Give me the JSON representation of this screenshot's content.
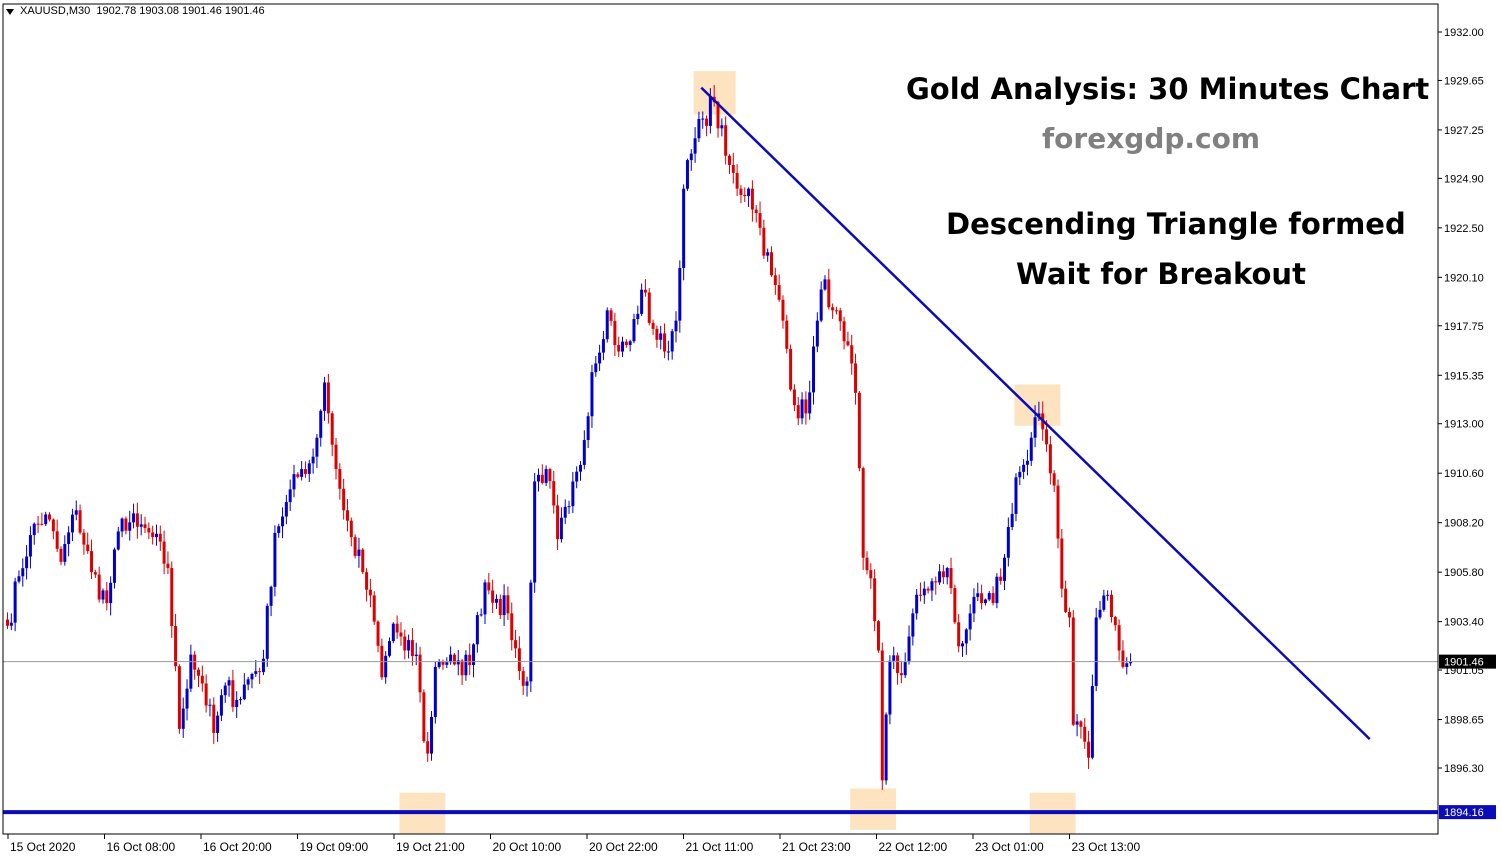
{
  "header": {
    "symbol": "XAUUSD,M30",
    "ohlc": "1902.78 1903.08 1901.46 1901.46"
  },
  "annotations": {
    "title": "Gold Analysis: 30 Minutes Chart",
    "site": "forexgdp.com",
    "line1": "Descending Triangle formed",
    "line2": "Wait for Breakout"
  },
  "colors": {
    "bull": "#0000cc",
    "bear": "#dd0000",
    "trendline": "#0b0bb8",
    "support": "#0b0bb8",
    "highlight": "#fde3c0",
    "grid": "#000000"
  },
  "chart_data": {
    "type": "candlestick",
    "instrument": "XAUUSD",
    "timeframe": "M30",
    "ylim": [
      1893.0,
      1933.0
    ],
    "y_ticks": [
      "1932.00",
      "1929.65",
      "1927.25",
      "1924.90",
      "1922.50",
      "1920.10",
      "1917.75",
      "1915.35",
      "1913.00",
      "1910.60",
      "1908.20",
      "1905.80",
      "1903.40",
      "1901.05",
      "1898.65",
      "1896.30"
    ],
    "x_ticks": [
      "15 Oct 2020",
      "16 Oct 08:00",
      "16 Oct 20:00",
      "19 Oct 09:00",
      "19 Oct 21:00",
      "20 Oct 10:00",
      "20 Oct 22:00",
      "21 Oct 11:00",
      "21 Oct 23:00",
      "22 Oct 12:00",
      "23 Oct 01:00",
      "23 Oct 13:00"
    ],
    "current_price": "1901.46",
    "support_level": "1894.16",
    "support_price": 1894.16,
    "trendline": {
      "from": {
        "bar": 182,
        "price": 1929.3
      },
      "to": {
        "bar": 357,
        "price": 1897.7
      }
    },
    "highlight_boxes": [
      {
        "bar_from": 180,
        "bar_to": 191,
        "price_from": 1928.0,
        "price_to": 1930.1
      },
      {
        "bar_from": 264,
        "bar_to": 276,
        "price_from": 1912.9,
        "price_to": 1914.9
      },
      {
        "bar_from": 103,
        "bar_to": 115,
        "price_from": 1893.1,
        "price_to": 1895.1
      },
      {
        "bar_from": 221,
        "bar_to": 233,
        "price_from": 1893.3,
        "price_to": 1895.3
      },
      {
        "bar_from": 268,
        "bar_to": 280,
        "price_from": 1893.1,
        "price_to": 1895.1
      }
    ],
    "anchors": [
      [
        0,
        1903.2
      ],
      [
        3,
        1905.6
      ],
      [
        6,
        1907.6
      ],
      [
        10,
        1908.6
      ],
      [
        14,
        1906.3
      ],
      [
        18,
        1908.8
      ],
      [
        22,
        1905.8
      ],
      [
        26,
        1904.3
      ],
      [
        30,
        1908.4
      ],
      [
        34,
        1908.0
      ],
      [
        38,
        1907.5
      ],
      [
        42,
        1906.0
      ],
      [
        45,
        1898.2
      ],
      [
        48,
        1901.8
      ],
      [
        51,
        1900.4
      ],
      [
        54,
        1898.0
      ],
      [
        57,
        1900.3
      ],
      [
        60,
        1899.6
      ],
      [
        63,
        1900.6
      ],
      [
        67,
        1901.6
      ],
      [
        70,
        1907.7
      ],
      [
        73,
        1909.2
      ],
      [
        77,
        1910.8
      ],
      [
        80,
        1911.4
      ],
      [
        83,
        1915.0
      ],
      [
        86,
        1910.8
      ],
      [
        88,
        1908.8
      ],
      [
        90,
        1907.5
      ],
      [
        93,
        1905.8
      ],
      [
        96,
        1903.4
      ],
      [
        98,
        1900.7
      ],
      [
        101,
        1903.3
      ],
      [
        104,
        1902.0
      ],
      [
        107,
        1901.8
      ],
      [
        109,
        1897.6
      ],
      [
        110,
        1897.0
      ],
      [
        112,
        1901.2
      ],
      [
        116,
        1901.8
      ],
      [
        119,
        1900.8
      ],
      [
        122,
        1902.3
      ],
      [
        125,
        1905.3
      ],
      [
        128,
        1904.5
      ],
      [
        131,
        1903.8
      ],
      [
        134,
        1901.0
      ],
      [
        136,
        1900.5
      ],
      [
        138,
        1910.2
      ],
      [
        141,
        1910.8
      ],
      [
        144,
        1907.4
      ],
      [
        147,
        1909.0
      ],
      [
        150,
        1911.0
      ],
      [
        153,
        1915.5
      ],
      [
        157,
        1918.5
      ],
      [
        160,
        1916.5
      ],
      [
        163,
        1917.0
      ],
      [
        166,
        1919.5
      ],
      [
        169,
        1917.6
      ],
      [
        172,
        1916.5
      ],
      [
        175,
        1918.0
      ],
      [
        177,
        1924.4
      ],
      [
        179,
        1926.1
      ],
      [
        182,
        1927.8
      ],
      [
        185,
        1928.6
      ],
      [
        188,
        1926.0
      ],
      [
        191,
        1924.4
      ],
      [
        194,
        1924.4
      ],
      [
        197,
        1922.5
      ],
      [
        200,
        1920.2
      ],
      [
        203,
        1918.0
      ],
      [
        206,
        1913.9
      ],
      [
        209,
        1913.5
      ],
      [
        212,
        1918.0
      ],
      [
        214,
        1920.0
      ],
      [
        216,
        1918.5
      ],
      [
        219,
        1917.0
      ],
      [
        222,
        1914.5
      ],
      [
        224,
        1906.5
      ],
      [
        226,
        1905.5
      ],
      [
        228,
        1902.0
      ],
      [
        229,
        1895.7
      ],
      [
        231,
        1901.5
      ],
      [
        234,
        1900.8
      ],
      [
        237,
        1903.8
      ],
      [
        240,
        1905.0
      ],
      [
        243,
        1905.3
      ],
      [
        246,
        1906.0
      ],
      [
        249,
        1902.2
      ],
      [
        252,
        1903.8
      ],
      [
        255,
        1904.3
      ],
      [
        258,
        1904.3
      ],
      [
        261,
        1906.5
      ],
      [
        264,
        1910.4
      ],
      [
        267,
        1911.2
      ],
      [
        270,
        1913.5
      ],
      [
        272,
        1912.0
      ],
      [
        274,
        1910.0
      ],
      [
        276,
        1905.0
      ],
      [
        278,
        1903.6
      ],
      [
        279,
        1898.4
      ],
      [
        281,
        1898.3
      ],
      [
        283,
        1896.8
      ],
      [
        285,
        1903.6
      ],
      [
        288,
        1904.7
      ],
      [
        291,
        1902.0
      ],
      [
        294,
        1901.46
      ]
    ]
  }
}
